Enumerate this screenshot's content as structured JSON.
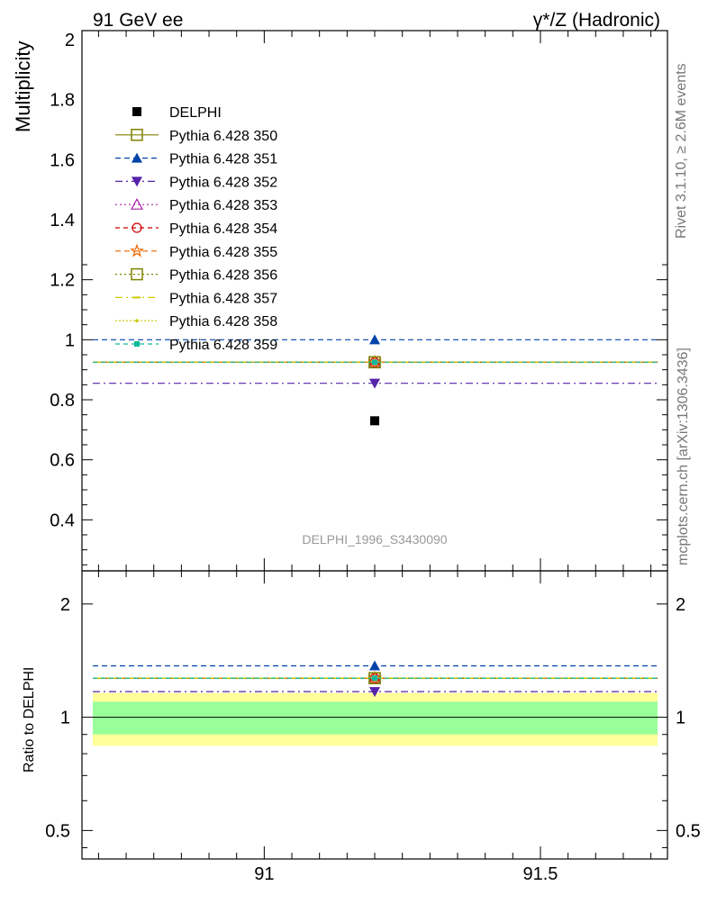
{
  "chart_data": {
    "type": "scatter",
    "top_left_title": "91 GeV ee",
    "top_right_title": "γ*/Z (Hadronic)",
    "ylabel": "Multiplicity",
    "ratio_ylabel": "Ratio to DELPHI",
    "watermark": "DELPHI_1996_S3430090",
    "side_text_top": "Rivet 3.1.10, ≥ 2.6M events",
    "side_text_bottom": "mcplots.cern.ch [arXiv:1306.3436]",
    "xlim": [
      90.67,
      91.73
    ],
    "ylim": [
      0.23,
      2.03
    ],
    "ratio_ylim": [
      0.42,
      2.45
    ],
    "ratio_log_scale": true,
    "xticks": [
      {
        "value": 91,
        "label": "91"
      },
      {
        "value": 91.5,
        "label": "91.5"
      }
    ],
    "yticks": [
      {
        "value": 0.4,
        "label": "0.4"
      },
      {
        "value": 0.6,
        "label": "0.6"
      },
      {
        "value": 0.8,
        "label": "0.8"
      },
      {
        "value": 1.0,
        "label": "1"
      },
      {
        "value": 1.2,
        "label": "1.2"
      },
      {
        "value": 1.4,
        "label": "1.4"
      },
      {
        "value": 1.6,
        "label": "1.6"
      },
      {
        "value": 1.8,
        "label": "1.8"
      },
      {
        "value": 2.0,
        "label": "2"
      }
    ],
    "ratio_yticks": [
      {
        "value": 0.5,
        "label": "0.5"
      },
      {
        "value": 1,
        "label": "1"
      },
      {
        "value": 2,
        "label": "2"
      }
    ],
    "data": {
      "name": "DELPHI",
      "x": 91.2,
      "y": 0.73,
      "color": "#000000",
      "marker": "filled-square"
    },
    "ratio_band": {
      "inner": [
        0.9,
        1.1
      ],
      "outer": [
        0.84,
        1.16
      ],
      "inner_color": "#99ff99",
      "outer_color": "#ffff99"
    },
    "series": [
      {
        "name": "Pythia 6.428 350",
        "x": 91.2,
        "y": 0.925,
        "ratio": 1.27,
        "color": "#808000",
        "dash": "",
        "marker": "open-square"
      },
      {
        "name": "Pythia 6.428 351",
        "x": 91.2,
        "y": 1.0,
        "ratio": 1.37,
        "color": "#0044aa",
        "dash": "6,4",
        "marker": "filled-triangle-up"
      },
      {
        "name": "Pythia 6.428 352",
        "x": 91.2,
        "y": 0.855,
        "ratio": 1.17,
        "color": "#5522aa",
        "dash": "8,4,2,4",
        "marker": "filled-triangle-down"
      },
      {
        "name": "Pythia 6.428 353",
        "x": 91.2,
        "y": 0.925,
        "ratio": 1.27,
        "color": "#aa22aa",
        "dash": "2,3",
        "marker": "open-triangle-up"
      },
      {
        "name": "Pythia 6.428 354",
        "x": 91.2,
        "y": 0.925,
        "ratio": 1.27,
        "color": "#cc0000",
        "dash": "5,4",
        "marker": "open-circle"
      },
      {
        "name": "Pythia 6.428 355",
        "x": 91.2,
        "y": 0.925,
        "ratio": 1.27,
        "color": "#ee6600",
        "dash": "6,4",
        "marker": "open-star"
      },
      {
        "name": "Pythia 6.428 356",
        "x": 91.2,
        "y": 0.925,
        "ratio": 1.27,
        "color": "#808000",
        "dash": "2,3",
        "marker": "open-square"
      },
      {
        "name": "Pythia 6.428 357",
        "x": 91.2,
        "y": 0.925,
        "ratio": 1.27,
        "color": "#cccc00",
        "dash": "8,4,2,4",
        "marker": "dash"
      },
      {
        "name": "Pythia 6.428 358",
        "x": 91.2,
        "y": 0.925,
        "ratio": 1.27,
        "color": "#cccc00",
        "dash": "2,2",
        "marker": "dot"
      },
      {
        "name": "Pythia 6.428 359",
        "x": 91.2,
        "y": 0.925,
        "ratio": 1.27,
        "color": "#11bb99",
        "dash": "5,4",
        "marker": "filled-square-small"
      }
    ]
  }
}
